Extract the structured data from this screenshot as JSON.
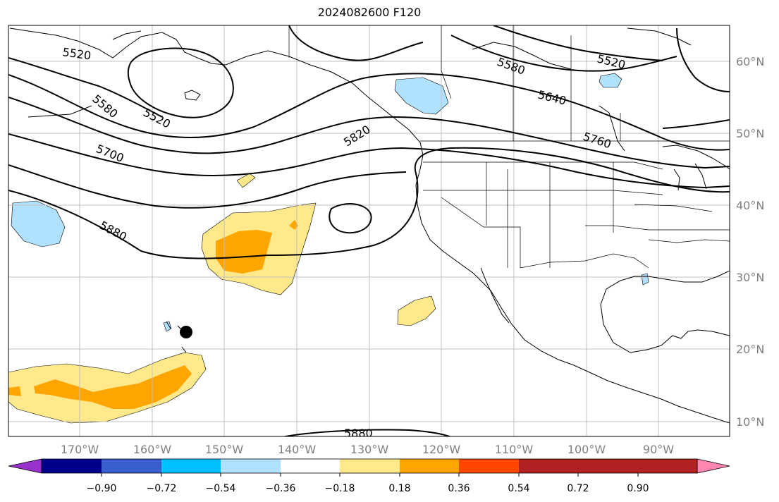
{
  "title": "2024082600 F120",
  "map": {
    "lon_labels": [
      "170°W",
      "160°W",
      "150°W",
      "140°W",
      "130°W",
      "120°W",
      "110°W",
      "100°W",
      "90°W"
    ],
    "lat_labels": [
      "60°N",
      "50°N",
      "40°N",
      "30°N",
      "20°N",
      "10°N"
    ],
    "contour_labels": [
      "5520",
      "5580",
      "5520",
      "5700",
      "5880",
      "5820",
      "5580",
      "5520",
      "5640",
      "5760",
      "5880"
    ],
    "marker": "black-dot-near-hawaii"
  },
  "colorbar": {
    "tick_labels": [
      "−0.90",
      "−0.72",
      "−0.54",
      "−0.36",
      "−0.18",
      "0.18",
      "0.36",
      "0.54",
      "0.72",
      "0.90"
    ],
    "colors": [
      "#9932cc",
      "#00008b",
      "#3a5fcd",
      "#00bfff",
      "#b0e2ff",
      "#ffffff",
      "#ffe98a",
      "#ffa500",
      "#ff4500",
      "#b22222",
      "#ff86b0"
    ]
  }
}
